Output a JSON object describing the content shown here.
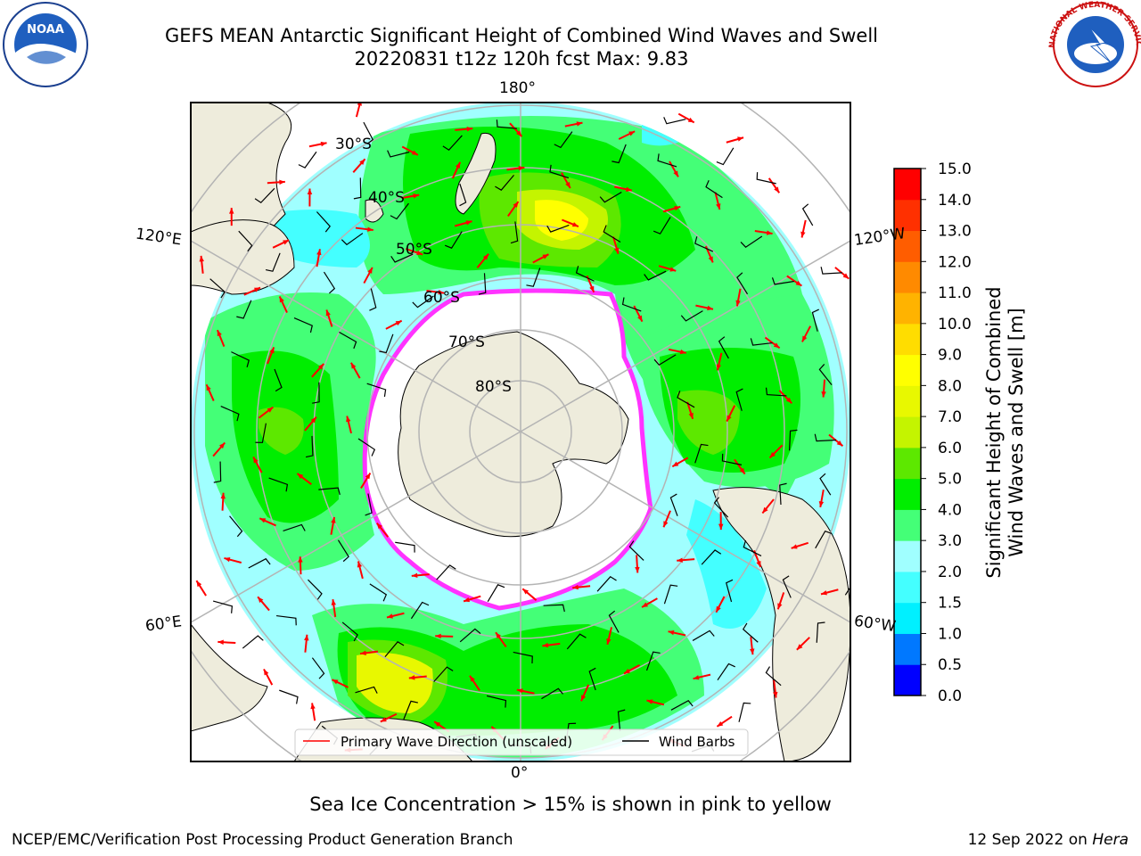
{
  "title": {
    "line1": "GEFS MEAN Antarctic Significant Height of Combined Wind Waves and Swell",
    "line2": "20220831 t12z 120h fcst   Max: 9.83"
  },
  "map": {
    "longitude_labels": {
      "top": "180°",
      "bottom": "0°",
      "upper_left": "120°E",
      "upper_right": "120°W",
      "lower_left": "60°E",
      "lower_right": "60°W"
    },
    "latitude_labels": [
      "30°S",
      "40°S",
      "50°S",
      "60°S",
      "70°S",
      "80°S"
    ],
    "colors": {
      "land": "#eeecdc",
      "sea_ice": "#ffffff",
      "ice_edge": "#ff33ff",
      "wave_arrow": "#ff0000",
      "wind_barb": "#000000",
      "grid": "#b4b4b4"
    }
  },
  "legend": {
    "wave_label": "Primary Wave Direction (unscaled)",
    "wind_label": "Wind Barbs"
  },
  "colorbar": {
    "label_line1": "Significant Height of Combined",
    "label_line2": "Wind Waves and Swell [m]",
    "ticks": [
      "0.0",
      "0.5",
      "1.0",
      "1.5",
      "2.0",
      "3.0",
      "4.0",
      "5.0",
      "6.0",
      "7.0",
      "8.0",
      "9.0",
      "10.0",
      "11.0",
      "12.0",
      "13.0",
      "14.0",
      "15.0"
    ],
    "colors": [
      "#0000ff",
      "#0078ff",
      "#00f0ff",
      "#44ffff",
      "#a0ffff",
      "#44ff77",
      "#00ee00",
      "#5de800",
      "#c4f400",
      "#e8f800",
      "#ffff00",
      "#ffdd00",
      "#ffb300",
      "#ff8a00",
      "#ff5d00",
      "#ff3000",
      "#ff0000"
    ]
  },
  "logos": {
    "left_text": "NOAA",
    "right_text": "NATIONAL WEATHER SERVICE"
  },
  "note": "Sea Ice Concentration > 15% is shown in pink to yellow",
  "footer": {
    "left": "NCEP/EMC/Verification Post Processing Product Generation Branch",
    "right_prefix": "12 Sep 2022 on ",
    "right_host": "Hera"
  }
}
